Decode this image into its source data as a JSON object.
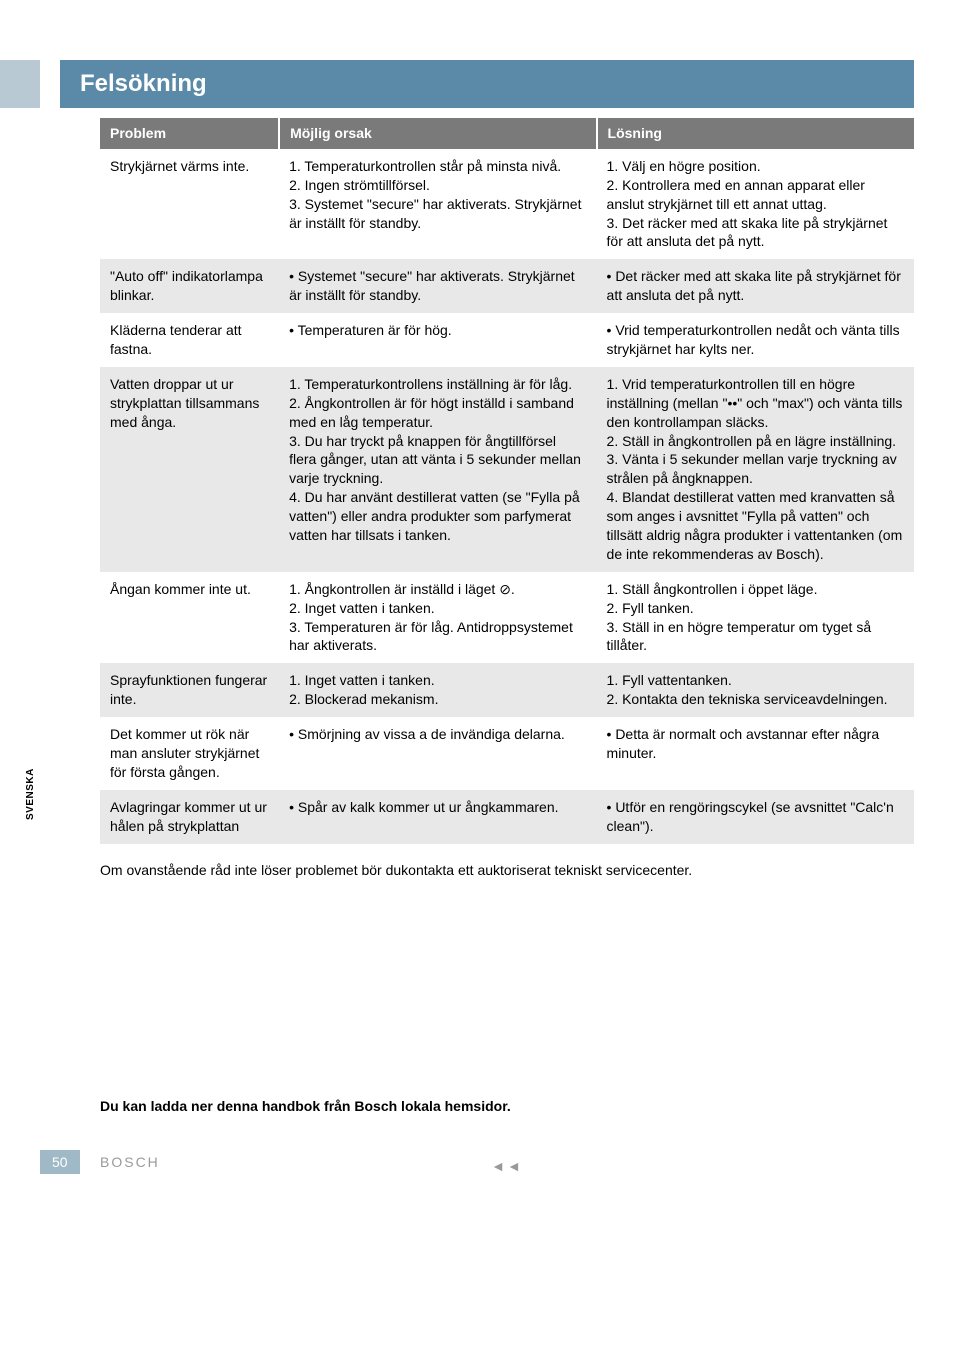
{
  "language_tab": "SVENSKA",
  "page_number": "50",
  "brand": "BOSCH",
  "nav_arrows": "◄◄",
  "title": "Felsökning",
  "headers": {
    "problem": "Problem",
    "cause": "Möjlig orsak",
    "solution": "Lösning"
  },
  "rows": [
    {
      "problem": "Strykjärnet värms inte.",
      "cause_items": [
        "1. Temperaturkontrollen står på minsta nivå.",
        "2. Ingen strömtillförsel.",
        "3. Systemet \"secure\" har aktiverats. Strykjärnet är inställt för standby."
      ],
      "solution_items": [
        "1. Välj en högre position.",
        "2. Kontrollera med en annan apparat eller anslut strykjärnet till ett annat uttag.",
        "3. Det räcker med att skaka lite på strykjärnet för att ansluta det på nytt."
      ]
    },
    {
      "problem": "\"Auto off\" indikatorlampa blinkar.",
      "cause_items": [
        "• Systemet \"secure\" har aktiverats. Strykjärnet är inställt för standby."
      ],
      "solution_items": [
        "• Det räcker med att skaka lite på strykjärnet för att ansluta det på nytt."
      ]
    },
    {
      "problem": "Kläderna tenderar att fastna.",
      "cause_items": [
        "• Temperaturen är för hög."
      ],
      "solution_items": [
        "• Vrid temperaturkontrollen nedåt och vänta tills strykjärnet har kylts ner."
      ]
    },
    {
      "problem": "Vatten droppar ut ur strykplattan tillsammans med ånga.",
      "cause_items": [
        "1. Temperaturkontrollens inställning är för låg.",
        "2. Ångkontrollen är för högt inställd i samband med en låg temperatur.",
        "3. Du har tryckt på knappen för ångtillförsel flera gånger, utan att vänta i 5 sekunder mellan varje tryckning.",
        "4. Du har använt destillerat vatten (se \"Fylla på vatten\") eller andra produkter som parfymerat vatten har tillsats i tanken."
      ],
      "solution_items": [
        "1. Vrid temperaturkontrollen till en högre inställning (mellan \"••\" och \"max\") och vänta tills den kontrollampan släcks.",
        "2. Ställ in ångkontrollen på en lägre inställning.",
        "3. Vänta i 5 sekunder mellan varje tryckning av strålen på ångknappen.",
        "4. Blandat destillerat vatten med kranvatten så som anges i avsnittet \"Fylla på vatten\" och tillsätt aldrig några produkter i vattentanken (om de inte rekommenderas av Bosch)."
      ]
    },
    {
      "problem": "Ångan kommer inte ut.",
      "cause_items": [
        "1. Ångkontrollen är inställd i läget ⊘.",
        "2. Inget vatten i tanken.",
        "3. Temperaturen är för låg. Antidroppsystemet har aktiverats."
      ],
      "solution_items": [
        "1. Ställ ångkontrollen i öppet läge.",
        "2. Fyll tanken.",
        "3. Ställ in en högre temperatur om tyget så tillåter."
      ]
    },
    {
      "problem": "Sprayfunktionen fungerar inte.",
      "cause_items": [
        "1. Inget vatten i tanken.",
        "2. Blockerad mekanism."
      ],
      "solution_items": [
        "1. Fyll vattentanken.",
        "2. Kontakta den tekniska serviceavdelningen."
      ]
    },
    {
      "problem": "Det kommer ut rök när man ansluter strykjärnet för första gången.",
      "cause_items": [
        "• Smörjning av vissa a de invändiga delarna."
      ],
      "solution_items": [
        "• Detta är normalt och avstannar efter några minuter."
      ]
    },
    {
      "problem": "Avlagringar kommer ut ur hålen på strykplattan",
      "cause_items": [
        "• Spår av kalk kommer ut ur ångkammaren."
      ],
      "solution_items": [
        "• Utför en rengöringscykel (se avsnittet \"Calc'n clean\")."
      ]
    }
  ],
  "note": "Om ovanstående råd inte löser problemet bör dukontakta ett auktoriserat tekniskt servicecenter.",
  "download_note": "Du kan ladda ner denna handbok från Bosch lokala hemsidor."
}
